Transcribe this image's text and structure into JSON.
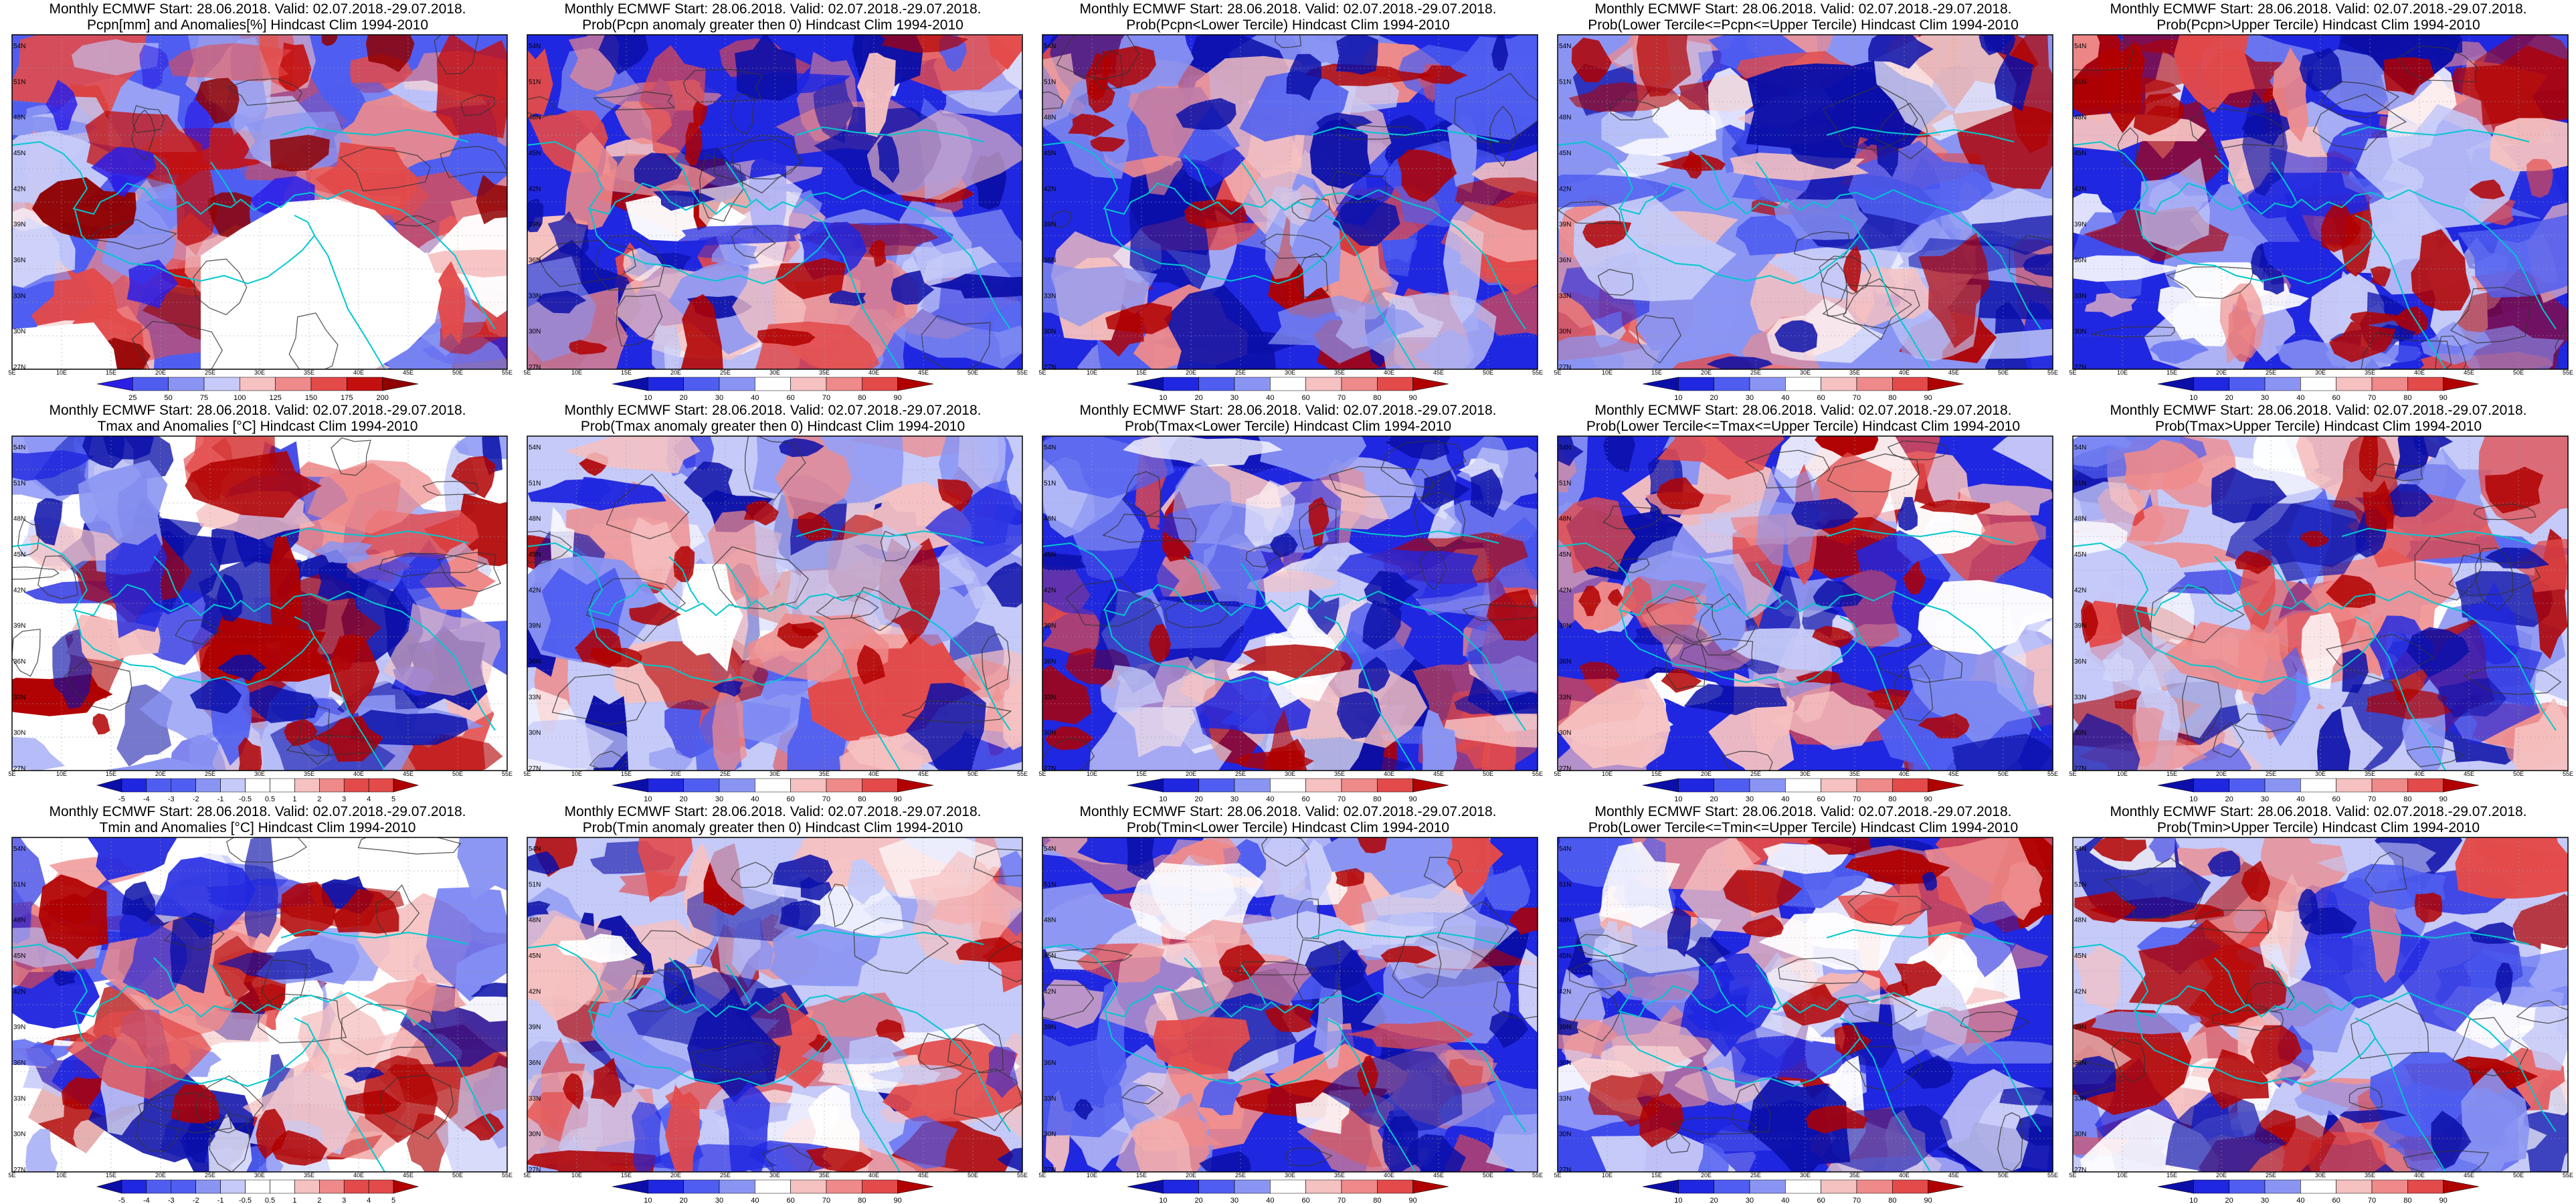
{
  "rows": [
    {
      "variable": "Pcpn",
      "panels": [
        {
          "title_1": "Monthly ECMWF Start: 28.06.2018. Valid: 02.07.2018.-29.07.2018.",
          "title_2": "Pcpn[mm] and Anomalies[%] Hindcast Clim 1994-2010",
          "field": "anomaly",
          "colorbar": [
            "25",
            "50",
            "75",
            "100",
            "125",
            "150",
            "175",
            "200"
          ],
          "palette": [
            "#2b1fe6",
            "#4f5ef0",
            "#8a95f3",
            "#c5caf8",
            "#ffffff",
            "#f6c1c1",
            "#ef8a8a",
            "#e34a4a",
            "#c40f0f",
            "#8f0000"
          ],
          "map_note": "white masked area"
        },
        {
          "title_1": "Monthly ECMWF Start: 28.06.2018. Valid: 02.07.2018.-29.07.2018.",
          "title_2": "Prob(Pcpn anomaly greater then 0) Hindcast Clim 1994-2010",
          "field": "prob",
          "colorbar": [
            "10",
            "20",
            "30",
            "40",
            "60",
            "70",
            "80",
            "90"
          ],
          "palette": [
            "#0b0fa8",
            "#2027e0",
            "#4f5ef0",
            "#8a95f3",
            "#c5caf8",
            "#ffffff",
            "#f6c1c1",
            "#ef8a8a",
            "#e34a4a",
            "#b00000"
          ]
        },
        {
          "title_1": "Monthly ECMWF Start: 28.06.2018. Valid: 02.07.2018.-29.07.2018.",
          "title_2": "Prob(Pcpn<Lower Tercile) Hindcast Clim 1994-2010",
          "field": "prob",
          "colorbar": [
            "10",
            "20",
            "30",
            "40",
            "60",
            "70",
            "80",
            "90"
          ],
          "palette": [
            "#0b0fa8",
            "#2027e0",
            "#4f5ef0",
            "#8a95f3",
            "#c5caf8",
            "#ffffff",
            "#f6c1c1",
            "#ef8a8a",
            "#e34a4a",
            "#b00000"
          ]
        },
        {
          "title_1": "Monthly ECMWF Start: 28.06.2018. Valid: 02.07.2018.-29.07.2018.",
          "title_2": "Prob(Lower Tercile<=Pcpn<=Upper Tercile) Hindcast Clim 1994-2010",
          "field": "prob",
          "colorbar": [
            "10",
            "20",
            "30",
            "40",
            "60",
            "70",
            "80",
            "90"
          ],
          "palette": [
            "#0b0fa8",
            "#2027e0",
            "#4f5ef0",
            "#8a95f3",
            "#c5caf8",
            "#ffffff",
            "#f6c1c1",
            "#ef8a8a",
            "#e34a4a",
            "#b00000"
          ]
        },
        {
          "title_1": "Monthly ECMWF Start: 28.06.2018. Valid: 02.07.2018.-29.07.2018.",
          "title_2": "Prob(Pcpn>Upper Tercile) Hindcast Clim 1994-2010",
          "field": "prob",
          "colorbar": [
            "10",
            "20",
            "30",
            "40",
            "60",
            "70",
            "80",
            "90"
          ],
          "palette": [
            "#0b0fa8",
            "#2027e0",
            "#4f5ef0",
            "#8a95f3",
            "#c5caf8",
            "#ffffff",
            "#f6c1c1",
            "#ef8a8a",
            "#e34a4a",
            "#b00000"
          ]
        }
      ]
    },
    {
      "variable": "Tmax",
      "panels": [
        {
          "title_1": "Monthly ECMWF Start: 28.06.2018. Valid: 02.07.2018.-29.07.2018.",
          "title_2": "Tmax and Anomalies [°C] Hindcast Clim 1994-2010",
          "field": "anomaly",
          "colorbar": [
            "-5",
            "-4",
            "-3",
            "-2",
            "-1",
            "-0.5",
            "0.5",
            "1",
            "2",
            "3",
            "4",
            "5"
          ],
          "palette": [
            "#0b0fa8",
            "#2027e0",
            "#4f5ef0",
            "#8a95f3",
            "#c5caf8",
            "#ffffff",
            "#f6c1c1",
            "#ef8a8a",
            "#e34a4a",
            "#b00000"
          ]
        },
        {
          "title_1": "Monthly ECMWF Start: 28.06.2018. Valid: 02.07.2018.-29.07.2018.",
          "title_2": "Prob(Tmax anomaly greater then 0) Hindcast Clim 1994-2010",
          "field": "prob",
          "colorbar": [
            "10",
            "20",
            "30",
            "40",
            "60",
            "70",
            "80",
            "90"
          ],
          "palette": [
            "#0b0fa8",
            "#2027e0",
            "#4f5ef0",
            "#8a95f3",
            "#c5caf8",
            "#ffffff",
            "#f6c1c1",
            "#ef8a8a",
            "#e34a4a",
            "#b00000"
          ]
        },
        {
          "title_1": "Monthly ECMWF Start: 28.06.2018. Valid: 02.07.2018.-29.07.2018.",
          "title_2": "Prob(Tmax<Lower Tercile) Hindcast Clim 1994-2010",
          "field": "prob",
          "colorbar": [
            "10",
            "20",
            "30",
            "40",
            "60",
            "70",
            "80",
            "90"
          ],
          "palette": [
            "#0b0fa8",
            "#2027e0",
            "#4f5ef0",
            "#8a95f3",
            "#c5caf8",
            "#ffffff",
            "#f6c1c1",
            "#ef8a8a",
            "#e34a4a",
            "#b00000"
          ]
        },
        {
          "title_1": "Monthly ECMWF Start: 28.06.2018. Valid: 02.07.2018.-29.07.2018.",
          "title_2": "Prob(Lower Tercile<=Tmax<=Upper Tercile) Hindcast Clim 1994-2010",
          "field": "prob",
          "colorbar": [
            "10",
            "20",
            "30",
            "40",
            "60",
            "70",
            "80",
            "90"
          ],
          "palette": [
            "#0b0fa8",
            "#2027e0",
            "#4f5ef0",
            "#8a95f3",
            "#c5caf8",
            "#ffffff",
            "#f6c1c1",
            "#ef8a8a",
            "#e34a4a",
            "#b00000"
          ]
        },
        {
          "title_1": "Monthly ECMWF Start: 28.06.2018. Valid: 02.07.2018.-29.07.2018.",
          "title_2": "Prob(Tmax>Upper Tercile) Hindcast Clim 1994-2010",
          "field": "prob",
          "colorbar": [
            "10",
            "20",
            "30",
            "40",
            "60",
            "70",
            "80",
            "90"
          ],
          "palette": [
            "#0b0fa8",
            "#2027e0",
            "#4f5ef0",
            "#8a95f3",
            "#c5caf8",
            "#ffffff",
            "#f6c1c1",
            "#ef8a8a",
            "#e34a4a",
            "#b00000"
          ]
        }
      ]
    },
    {
      "variable": "Tmin",
      "panels": [
        {
          "title_1": "Monthly ECMWF Start: 28.06.2018. Valid: 02.07.2018.-29.07.2018.",
          "title_2": "Tmin and Anomalies [°C] Hindcast Clim 1994-2010",
          "field": "anomaly",
          "colorbar": [
            "-5",
            "-4",
            "-3",
            "-2",
            "-1",
            "-0.5",
            "0.5",
            "1",
            "2",
            "3",
            "4",
            "5"
          ],
          "palette": [
            "#0b0fa8",
            "#2027e0",
            "#4f5ef0",
            "#8a95f3",
            "#c5caf8",
            "#ffffff",
            "#f6c1c1",
            "#ef8a8a",
            "#e34a4a",
            "#b00000"
          ]
        },
        {
          "title_1": "Monthly ECMWF Start: 28.06.2018. Valid: 02.07.2018.-29.07.2018.",
          "title_2": "Prob(Tmin anomaly greater then 0) Hindcast Clim 1994-2010",
          "field": "prob",
          "colorbar": [
            "10",
            "20",
            "30",
            "40",
            "60",
            "70",
            "80",
            "90"
          ],
          "palette": [
            "#0b0fa8",
            "#2027e0",
            "#4f5ef0",
            "#8a95f3",
            "#c5caf8",
            "#ffffff",
            "#f6c1c1",
            "#ef8a8a",
            "#e34a4a",
            "#b00000"
          ]
        },
        {
          "title_1": "Monthly ECMWF Start: 28.06.2018. Valid: 02.07.2018.-29.07.2018.",
          "title_2": "Prob(Tmin<Lower Tercile) Hindcast Clim 1994-2010",
          "field": "prob",
          "colorbar": [
            "10",
            "20",
            "30",
            "40",
            "60",
            "70",
            "80",
            "90"
          ],
          "palette": [
            "#0b0fa8",
            "#2027e0",
            "#4f5ef0",
            "#8a95f3",
            "#c5caf8",
            "#ffffff",
            "#f6c1c1",
            "#ef8a8a",
            "#e34a4a",
            "#b00000"
          ]
        },
        {
          "title_1": "Monthly ECMWF Start: 28.06.2018. Valid: 02.07.2018.-29.07.2018.",
          "title_2": "Prob(Lower Tercile<=Tmin<=Upper Tercile) Hindcast Clim 1994-2010",
          "field": "prob",
          "colorbar": [
            "10",
            "20",
            "30",
            "40",
            "60",
            "70",
            "80",
            "90"
          ],
          "palette": [
            "#0b0fa8",
            "#2027e0",
            "#4f5ef0",
            "#8a95f3",
            "#c5caf8",
            "#ffffff",
            "#f6c1c1",
            "#ef8a8a",
            "#e34a4a",
            "#b00000"
          ]
        },
        {
          "title_1": "Monthly ECMWF Start: 28.06.2018. Valid: 02.07.2018.-29.07.2018.",
          "title_2": "Prob(Tmin>Upper Tercile) Hindcast Clim 1994-2010",
          "field": "prob",
          "colorbar": [
            "10",
            "20",
            "30",
            "40",
            "60",
            "70",
            "80",
            "90"
          ],
          "palette": [
            "#0b0fa8",
            "#2027e0",
            "#4f5ef0",
            "#8a95f3",
            "#c5caf8",
            "#ffffff",
            "#f6c1c1",
            "#ef8a8a",
            "#e34a4a",
            "#b00000"
          ]
        }
      ]
    }
  ],
  "lat_labels": [
    "54N",
    "51N",
    "48N",
    "45N",
    "42N",
    "39N",
    "36N",
    "33N",
    "30N",
    "27N"
  ],
  "lon_labels": [
    "5E",
    "10E",
    "15E",
    "20E",
    "25E",
    "30E",
    "35E",
    "40E",
    "45E",
    "50E",
    "55E"
  ],
  "colors": {
    "coastline": "#00c8d0",
    "contour": "#333333",
    "frame": "#000000",
    "grid": "#9aa0a6"
  }
}
